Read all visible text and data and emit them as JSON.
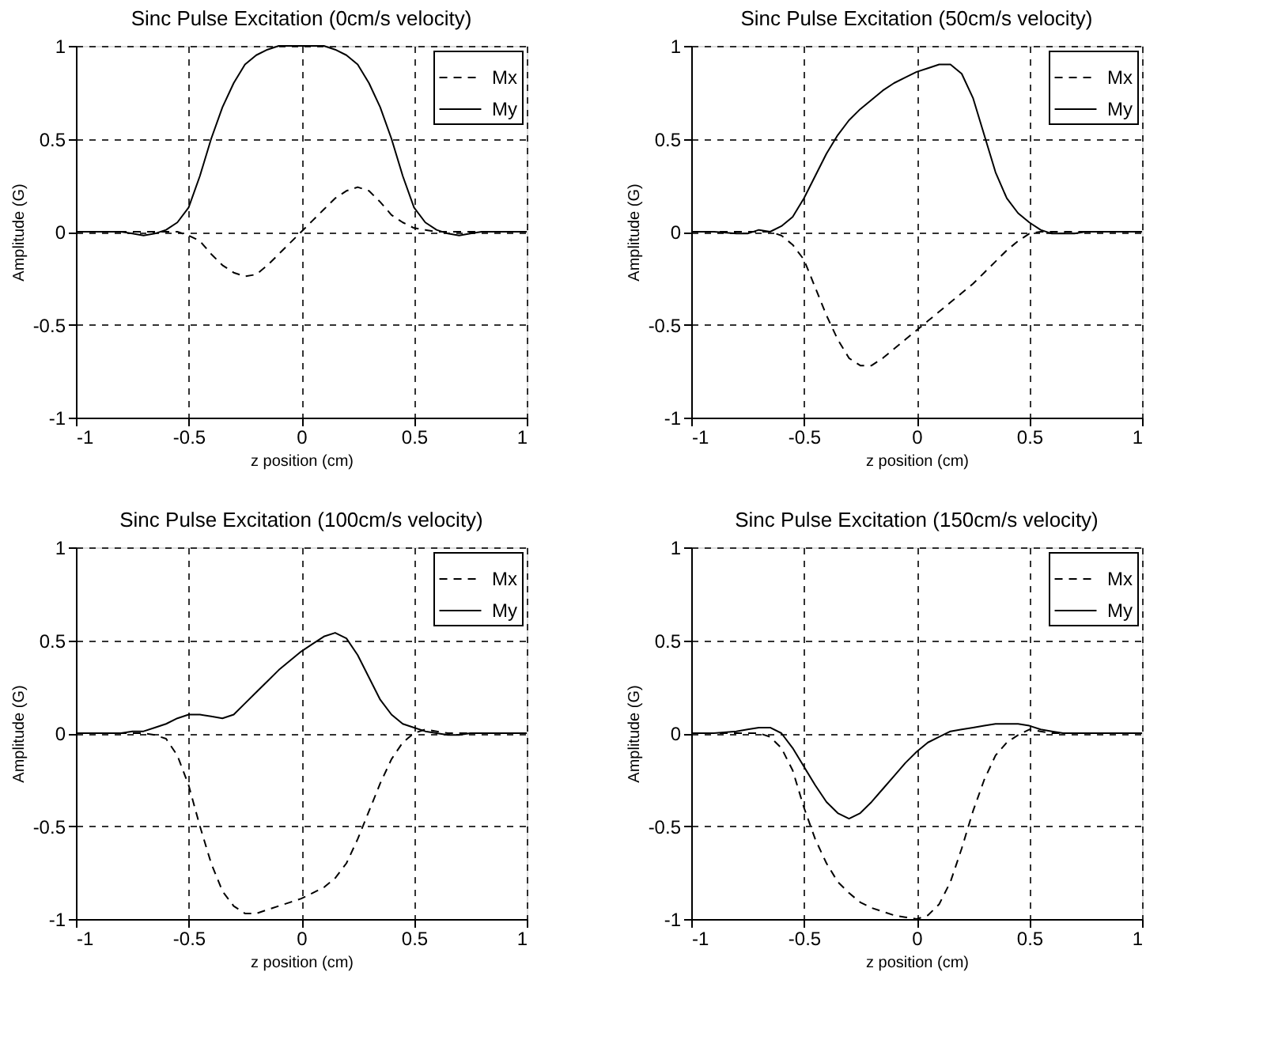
{
  "chart_data": [
    {
      "type": "line",
      "title": "Sinc Pulse Excitation (0cm/s velocity)",
      "xlabel": "z position (cm)",
      "ylabel": "Amplitude (G)",
      "x": [
        -1,
        -0.9,
        -0.8,
        -0.75,
        -0.7,
        -0.65,
        -0.6,
        -0.55,
        -0.5,
        -0.45,
        -0.4,
        -0.35,
        -0.3,
        -0.25,
        -0.2,
        -0.15,
        -0.1,
        -0.05,
        0,
        0.05,
        0.1,
        0.15,
        0.2,
        0.25,
        0.3,
        0.35,
        0.4,
        0.45,
        0.5,
        0.55,
        0.6,
        0.65,
        0.7,
        0.75,
        0.8,
        0.9,
        1
      ],
      "series": [
        {
          "name": "Mx",
          "color": "#000000",
          "line_style": "dashed",
          "values": [
            0,
            0,
            0,
            0,
            0,
            0,
            0,
            0,
            -0.02,
            -0.05,
            -0.12,
            -0.18,
            -0.22,
            -0.24,
            -0.23,
            -0.18,
            -0.12,
            -0.06,
            0,
            0.06,
            0.12,
            0.18,
            0.22,
            0.24,
            0.22,
            0.16,
            0.09,
            0.05,
            0.02,
            0.01,
            0,
            0,
            0,
            0,
            0,
            0,
            0
          ]
        },
        {
          "name": "My",
          "color": "#000000",
          "line_style": "solid",
          "values": [
            0,
            0,
            0,
            -0.01,
            -0.02,
            -0.01,
            0.01,
            0.05,
            0.13,
            0.3,
            0.5,
            0.67,
            0.8,
            0.9,
            0.95,
            0.98,
            1,
            1,
            1,
            1,
            1,
            0.98,
            0.95,
            0.9,
            0.8,
            0.67,
            0.5,
            0.3,
            0.13,
            0.05,
            0.01,
            -0.01,
            -0.02,
            -0.01,
            0,
            0,
            0
          ]
        }
      ],
      "xlim": [
        -1,
        1
      ],
      "ylim": [
        -1,
        1
      ],
      "xticks": [
        -1,
        -0.5,
        0,
        0.5,
        1
      ],
      "yticks": [
        -1,
        -0.5,
        0,
        0.5,
        1
      ],
      "grid": true,
      "legend": "top right"
    },
    {
      "type": "line",
      "title": "Sinc Pulse Excitation (50cm/s velocity)",
      "xlabel": "z position (cm)",
      "ylabel": "Amplitude (G)",
      "x": [
        -1,
        -0.9,
        -0.8,
        -0.75,
        -0.7,
        -0.65,
        -0.6,
        -0.55,
        -0.5,
        -0.45,
        -0.4,
        -0.35,
        -0.3,
        -0.25,
        -0.2,
        -0.15,
        -0.1,
        -0.05,
        0,
        0.05,
        0.1,
        0.15,
        0.2,
        0.25,
        0.3,
        0.35,
        0.4,
        0.45,
        0.5,
        0.55,
        0.6,
        0.65,
        0.7,
        0.75,
        0.8,
        0.9,
        1
      ],
      "series": [
        {
          "name": "Mx",
          "color": "#000000",
          "line_style": "dashed",
          "values": [
            0,
            0,
            0,
            0,
            0,
            0,
            -0.02,
            -0.07,
            -0.15,
            -0.3,
            -0.45,
            -0.58,
            -0.68,
            -0.72,
            -0.72,
            -0.68,
            -0.63,
            -0.58,
            -0.53,
            -0.48,
            -0.43,
            -0.38,
            -0.33,
            -0.28,
            -0.22,
            -0.16,
            -0.1,
            -0.05,
            -0.01,
            0,
            0,
            0,
            0,
            0,
            0,
            0,
            0
          ]
        },
        {
          "name": "My",
          "color": "#000000",
          "line_style": "solid",
          "values": [
            0,
            0,
            -0.01,
            -0.01,
            0.01,
            0,
            0.03,
            0.08,
            0.18,
            0.3,
            0.42,
            0.52,
            0.6,
            0.66,
            0.71,
            0.76,
            0.8,
            0.83,
            0.86,
            0.88,
            0.9,
            0.9,
            0.85,
            0.72,
            0.52,
            0.32,
            0.18,
            0.1,
            0.05,
            0.01,
            -0.01,
            -0.01,
            -0.01,
            0,
            0,
            0,
            0
          ]
        }
      ],
      "xlim": [
        -1,
        1
      ],
      "ylim": [
        -1,
        1
      ],
      "xticks": [
        -1,
        -0.5,
        0,
        0.5,
        1
      ],
      "yticks": [
        -1,
        -0.5,
        0,
        0.5,
        1
      ],
      "grid": true,
      "legend": "top right"
    },
    {
      "type": "line",
      "title": "Sinc Pulse Excitation (100cm/s velocity)",
      "xlabel": "z position (cm)",
      "ylabel": "Amplitude (G)",
      "x": [
        -1,
        -0.9,
        -0.8,
        -0.75,
        -0.7,
        -0.65,
        -0.6,
        -0.55,
        -0.5,
        -0.45,
        -0.4,
        -0.35,
        -0.3,
        -0.25,
        -0.2,
        -0.15,
        -0.1,
        -0.05,
        0,
        0.05,
        0.1,
        0.15,
        0.2,
        0.25,
        0.3,
        0.35,
        0.4,
        0.45,
        0.5,
        0.55,
        0.6,
        0.65,
        0.7,
        0.75,
        0.8,
        0.9,
        1
      ],
      "series": [
        {
          "name": "Mx",
          "color": "#000000",
          "line_style": "dashed",
          "values": [
            0,
            0,
            0,
            0,
            0,
            -0.01,
            -0.03,
            -0.12,
            -0.28,
            -0.5,
            -0.7,
            -0.85,
            -0.93,
            -0.97,
            -0.97,
            -0.95,
            -0.93,
            -0.91,
            -0.89,
            -0.86,
            -0.83,
            -0.78,
            -0.7,
            -0.57,
            -0.42,
            -0.27,
            -0.14,
            -0.05,
            0,
            0.02,
            0.01,
            0,
            0,
            0,
            0,
            0,
            0
          ]
        },
        {
          "name": "My",
          "color": "#000000",
          "line_style": "solid",
          "values": [
            0,
            0,
            0,
            0.01,
            0.01,
            0.03,
            0.05,
            0.08,
            0.1,
            0.1,
            0.09,
            0.08,
            0.1,
            0.16,
            0.22,
            0.28,
            0.34,
            0.39,
            0.44,
            0.48,
            0.52,
            0.54,
            0.51,
            0.42,
            0.3,
            0.18,
            0.1,
            0.05,
            0.03,
            0.01,
            0,
            -0.01,
            -0.01,
            0,
            0,
            0,
            0
          ]
        }
      ],
      "xlim": [
        -1,
        1
      ],
      "ylim": [
        -1,
        1
      ],
      "xticks": [
        -1,
        -0.5,
        0,
        0.5,
        1
      ],
      "yticks": [
        -1,
        -0.5,
        0,
        0.5,
        1
      ],
      "grid": true,
      "legend": "top right"
    },
    {
      "type": "line",
      "title": "Sinc Pulse Excitation (150cm/s velocity)",
      "xlabel": "z position (cm)",
      "ylabel": "Amplitude (G)",
      "x": [
        -1,
        -0.9,
        -0.8,
        -0.75,
        -0.7,
        -0.65,
        -0.6,
        -0.55,
        -0.5,
        -0.45,
        -0.4,
        -0.35,
        -0.3,
        -0.25,
        -0.2,
        -0.15,
        -0.1,
        -0.05,
        0,
        0.05,
        0.1,
        0.15,
        0.2,
        0.25,
        0.3,
        0.35,
        0.4,
        0.45,
        0.5,
        0.55,
        0.6,
        0.65,
        0.7,
        0.75,
        0.8,
        0.9,
        1
      ],
      "series": [
        {
          "name": "Mx",
          "color": "#000000",
          "line_style": "dashed",
          "values": [
            0,
            0,
            0,
            0,
            0,
            -0.02,
            -0.08,
            -0.2,
            -0.4,
            -0.57,
            -0.7,
            -0.8,
            -0.86,
            -0.91,
            -0.94,
            -0.96,
            -0.98,
            -0.99,
            -1,
            -0.98,
            -0.92,
            -0.8,
            -0.62,
            -0.42,
            -0.25,
            -0.12,
            -0.05,
            -0.01,
            0.02,
            0.01,
            0,
            0,
            0,
            0,
            0,
            0,
            0
          ]
        },
        {
          "name": "My",
          "color": "#000000",
          "line_style": "solid",
          "values": [
            0,
            0,
            0.01,
            0.02,
            0.03,
            0.03,
            0,
            -0.08,
            -0.18,
            -0.28,
            -0.37,
            -0.43,
            -0.46,
            -0.43,
            -0.37,
            -0.3,
            -0.23,
            -0.16,
            -0.1,
            -0.05,
            -0.02,
            0.01,
            0.02,
            0.03,
            0.04,
            0.05,
            0.05,
            0.05,
            0.04,
            0.02,
            0.01,
            0,
            0,
            0,
            0,
            0,
            0
          ]
        }
      ],
      "xlim": [
        -1,
        1
      ],
      "ylim": [
        -1,
        1
      ],
      "xticks": [
        -1,
        -0.5,
        0,
        0.5,
        1
      ],
      "yticks": [
        -1,
        -0.5,
        0,
        0.5,
        1
      ],
      "grid": true,
      "legend": "top right"
    }
  ]
}
